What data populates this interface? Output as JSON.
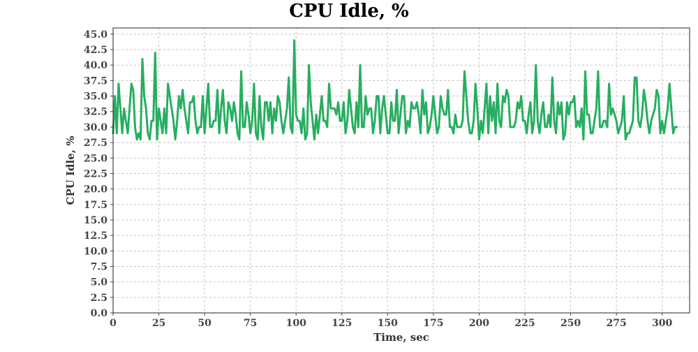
{
  "chart_data": {
    "type": "line",
    "title": "CPU Idle, %",
    "xlabel": "Time, sec",
    "ylabel": "CPU Idle, %",
    "xlim": [
      0,
      315
    ],
    "ylim": [
      0,
      46
    ],
    "x_ticks": [
      0,
      25,
      50,
      75,
      100,
      125,
      150,
      175,
      200,
      225,
      250,
      275,
      300
    ],
    "y_ticks": [
      0,
      2.5,
      5,
      7.5,
      10,
      12.5,
      15,
      17.5,
      20,
      22.5,
      25,
      27.5,
      30,
      32.5,
      35,
      37.5,
      40,
      42.5,
      45
    ],
    "y_tick_format": "0.0",
    "grid": true,
    "legend": "none",
    "series": [
      {
        "color": "#27ae60",
        "x_start": 0,
        "x_step": 1,
        "values": [
          29,
          35,
          29,
          37,
          33,
          29,
          33,
          31,
          29,
          33,
          37,
          36,
          30,
          28,
          29,
          28,
          41,
          35,
          33,
          29,
          28,
          31,
          31,
          42,
          28,
          33,
          31,
          29,
          33,
          29,
          37,
          35,
          33,
          31,
          28,
          31,
          35,
          33,
          36,
          33,
          31,
          29,
          34,
          34,
          35,
          31,
          29,
          30,
          30,
          35,
          29,
          33,
          37,
          30,
          30,
          31,
          31,
          36,
          29,
          33,
          36,
          31,
          29,
          34,
          33,
          31,
          34,
          32,
          29,
          28,
          39,
          30,
          30,
          34,
          32,
          29,
          31,
          37,
          29,
          28,
          35,
          30,
          28,
          34,
          34,
          31,
          34,
          29,
          33,
          31,
          35,
          34,
          31,
          29,
          31,
          33,
          38,
          30,
          29,
          44,
          32,
          31,
          31,
          29,
          33,
          28,
          29,
          40,
          34,
          31,
          28,
          32,
          29,
          32,
          35,
          31,
          31,
          30,
          37,
          33,
          33,
          33,
          32,
          34,
          31,
          31,
          34,
          29,
          31,
          36,
          33,
          30,
          29,
          34,
          30,
          40,
          30,
          30,
          35,
          32,
          33,
          33,
          29,
          31,
          35,
          35,
          29,
          33,
          35,
          32,
          29,
          29,
          34,
          31,
          31,
          36,
          29,
          32,
          35,
          35,
          29,
          31,
          30,
          34,
          33,
          33,
          34,
          32,
          29,
          36,
          32,
          34,
          29,
          30,
          32,
          35,
          32,
          29,
          30,
          35,
          33,
          32,
          32,
          36,
          30,
          30,
          29,
          32,
          30,
          30,
          30,
          31,
          39,
          35,
          31,
          29,
          29,
          31,
          37,
          33,
          28,
          31,
          29,
          33,
          37,
          29,
          35,
          31,
          34,
          29,
          37,
          31,
          30,
          35,
          34,
          36,
          35,
          30,
          30,
          30,
          31,
          34,
          33,
          35,
          31,
          31,
          29,
          32,
          34,
          29,
          31,
          40,
          31,
          29,
          32,
          34,
          30,
          30,
          32,
          30,
          38,
          31,
          29,
          34,
          32,
          34,
          28,
          29,
          34,
          32,
          34,
          34,
          35,
          30,
          31,
          30,
          33,
          28,
          39,
          32,
          32,
          29,
          29,
          31,
          33,
          39,
          30,
          30,
          31,
          31,
          30,
          37,
          32,
          33,
          32,
          31,
          29,
          30,
          31,
          35,
          28,
          29,
          29,
          30,
          31,
          38,
          38,
          31,
          30,
          32,
          36,
          34,
          31,
          29,
          31,
          32,
          33,
          36,
          35,
          29,
          31,
          29,
          31,
          33,
          37,
          33,
          29,
          30,
          30
        ]
      }
    ]
  }
}
